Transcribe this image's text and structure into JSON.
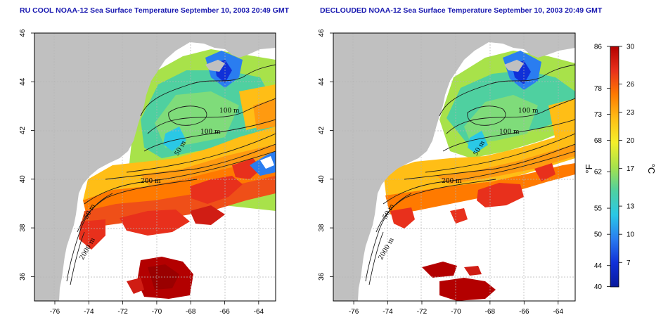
{
  "panels": [
    {
      "title": "RU COOL NOAA-12 Sea Surface Temperature September 10, 2003 20:49 GMT",
      "contour_labels": [
        "100 m",
        "100 m",
        "50 m",
        "200 m",
        "50 m",
        "2000 m"
      ]
    },
    {
      "title": "DECLOUDED NOAA-12 Sea Surface Temperature September 10, 2003 20:49 GMT",
      "contour_labels": [
        "100 m",
        "100 m",
        "50 m",
        "200 m",
        "50 m",
        "2000 m"
      ]
    }
  ],
  "axes": {
    "lon_ticks": [
      "-76",
      "-74",
      "-72",
      "-70",
      "-68",
      "-66",
      "-64"
    ],
    "lat_ticks": [
      "36",
      "38",
      "40",
      "42",
      "44",
      "46"
    ],
    "lon_range": [
      -77.2,
      -63.0
    ],
    "lat_range": [
      35.0,
      46.0
    ]
  },
  "colorbar": {
    "fahrenheit_label": "°F",
    "celsius_label": "°C",
    "fahrenheit_ticks": [
      "86",
      "78",
      "73",
      "68",
      "62",
      "55",
      "50",
      "44",
      "40"
    ],
    "celsius_ticks": [
      "30",
      "26",
      "23",
      "20",
      "17",
      "13",
      "10",
      "7"
    ],
    "colors": [
      "#b30000",
      "#e8301c",
      "#ff7a00",
      "#ffbe16",
      "#f5ef2a",
      "#a8e24a",
      "#4fd0a0",
      "#2ac8e6",
      "#2a7df0",
      "#1030d8",
      "#0a1a9c"
    ]
  },
  "colors": {
    "land": "#c0c0c0",
    "title": "#1818b0",
    "grid": "#b4b4b4"
  }
}
